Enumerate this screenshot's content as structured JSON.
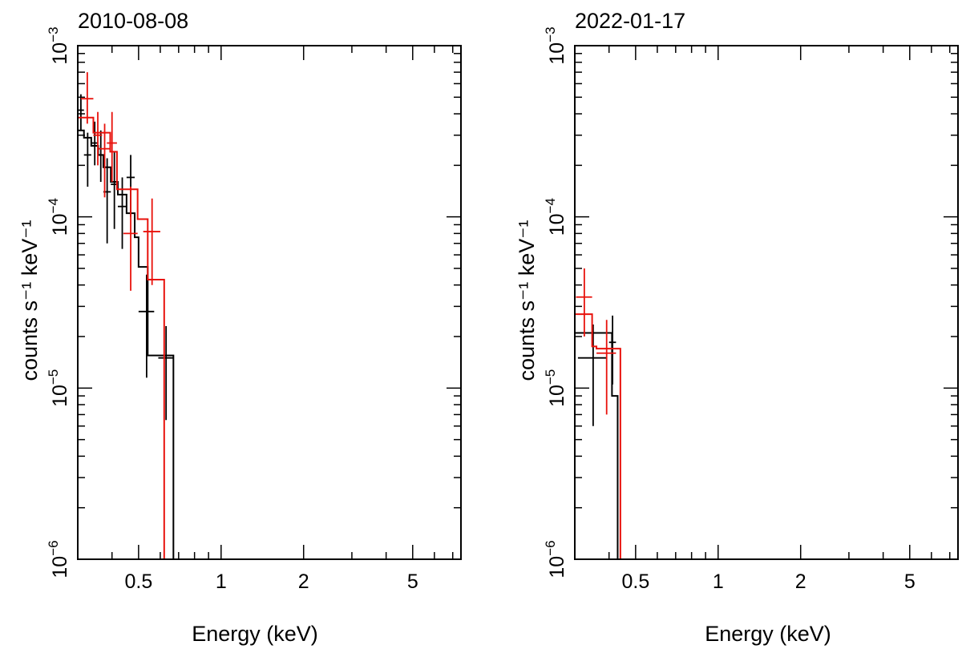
{
  "colors": {
    "black_series": "#000000",
    "red_series": "#e8120c"
  },
  "chart_data": [
    {
      "type": "step-errorbar",
      "title": "2010-08-08",
      "xlabel": "Energy (keV)",
      "ylabel": "counts s⁻¹ keV⁻¹",
      "xscale": "log",
      "yscale": "log",
      "xlim": [
        0.3,
        7.5
      ],
      "ylim": [
        1e-06,
        0.001
      ],
      "xticks": [
        {
          "v": 0.5,
          "label": "0.5"
        },
        {
          "v": 1,
          "label": "1"
        },
        {
          "v": 2,
          "label": "2"
        },
        {
          "v": 5,
          "label": "5"
        }
      ],
      "yticks": [
        {
          "v": 1e-06,
          "base": "10",
          "exp": "−6"
        },
        {
          "v": 1e-05,
          "base": "10",
          "exp": "−5"
        },
        {
          "v": 0.0001,
          "base": "10",
          "exp": "−4"
        },
        {
          "v": 0.001,
          "base": "10",
          "exp": "−3"
        }
      ],
      "series": [
        {
          "name": "black",
          "color": "#000000",
          "points": [
            {
              "x": 0.308,
              "xlo": 0.3,
              "xhi": 0.316,
              "y": 0.00042,
              "ylo": 0.00032,
              "yhi": 0.00052
            },
            {
              "x": 0.326,
              "xlo": 0.316,
              "xhi": 0.336,
              "y": 0.00023,
              "ylo": 0.00015,
              "yhi": 0.00031
            },
            {
              "x": 0.346,
              "xlo": 0.336,
              "xhi": 0.356,
              "y": 0.00027,
              "ylo": 0.0002,
              "yhi": 0.00036
            },
            {
              "x": 0.364,
              "xlo": 0.356,
              "xhi": 0.372,
              "y": 0.00023,
              "ylo": 0.00016,
              "yhi": 0.00032
            },
            {
              "x": 0.384,
              "xlo": 0.372,
              "xhi": 0.396,
              "y": 0.00014,
              "ylo": 7e-05,
              "yhi": 0.00022
            },
            {
              "x": 0.408,
              "xlo": 0.396,
              "xhi": 0.42,
              "y": 0.000155,
              "ylo": 8.5e-05,
              "yhi": 0.00024
            },
            {
              "x": 0.436,
              "xlo": 0.42,
              "xhi": 0.452,
              "y": 0.000115,
              "ylo": 6.5e-05,
              "yhi": 0.00017
            },
            {
              "x": 0.468,
              "xlo": 0.452,
              "xhi": 0.484,
              "y": 0.00017,
              "ylo": 0.0001,
              "yhi": 0.00023
            },
            {
              "x": 0.535,
              "xlo": 0.5,
              "xhi": 0.57,
              "y": 2.8e-05,
              "ylo": 1.15e-05,
              "yhi": 4.6e-05
            },
            {
              "x": 0.63,
              "xlo": 0.59,
              "xhi": 0.67,
              "y": 1.5e-05,
              "ylo": 6.5e-06,
              "yhi": 2.3e-05
            }
          ],
          "model_edges": [
            0.3,
            0.316,
            0.336,
            0.356,
            0.372,
            0.396,
            0.42,
            0.452,
            0.484,
            0.5,
            0.54,
            0.59,
            0.67
          ],
          "model_values": [
            0.00032,
            0.00029,
            0.00026,
            0.00023,
            0.000195,
            0.00016,
            0.000135,
            0.000105,
            7.6e-05,
            5.1e-05,
            1.55e-05,
            1.55e-05
          ],
          "model_drop_x": 0.67
        },
        {
          "name": "red",
          "color": "#e8120c",
          "points": [
            {
              "x": 0.325,
              "xlo": 0.308,
              "xhi": 0.342,
              "y": 0.00049,
              "ylo": 0.00035,
              "yhi": 0.0007
            },
            {
              "x": 0.355,
              "xlo": 0.342,
              "xhi": 0.368,
              "y": 0.0003,
              "ylo": 0.0002,
              "yhi": 0.00041
            },
            {
              "x": 0.376,
              "xlo": 0.358,
              "xhi": 0.394,
              "y": 0.00025,
              "ylo": 0.00013,
              "yhi": 0.00035
            },
            {
              "x": 0.4,
              "xlo": 0.383,
              "xhi": 0.417,
              "y": 0.00027,
              "ylo": 0.00016,
              "yhi": 0.00041
            },
            {
              "x": 0.468,
              "xlo": 0.44,
              "xhi": 0.496,
              "y": 8e-05,
              "ylo": 3.7e-05,
              "yhi": 0.00015
            },
            {
              "x": 0.56,
              "xlo": 0.52,
              "xhi": 0.6,
              "y": 8.2e-05,
              "ylo": 4e-05,
              "yhi": 0.000128
            }
          ],
          "model_edges": [
            0.3,
            0.342,
            0.394,
            0.417,
            0.496,
            0.54,
            0.62
          ],
          "model_values": [
            0.00038,
            0.00031,
            0.00024,
            0.000145,
            9.7e-05,
            4.3e-05
          ],
          "model_drop_x": 0.62
        }
      ]
    },
    {
      "type": "step-errorbar",
      "title": "2022-01-17",
      "xlabel": "Energy (keV)",
      "ylabel": "counts s⁻¹ keV⁻¹",
      "xscale": "log",
      "yscale": "log",
      "xlim": [
        0.3,
        7.5
      ],
      "ylim": [
        1e-06,
        0.001
      ],
      "xticks": [
        {
          "v": 0.5,
          "label": "0.5"
        },
        {
          "v": 1,
          "label": "1"
        },
        {
          "v": 2,
          "label": "2"
        },
        {
          "v": 5,
          "label": "5"
        }
      ],
      "yticks": [
        {
          "v": 1e-06,
          "base": "10",
          "exp": "−6"
        },
        {
          "v": 1e-05,
          "base": "10",
          "exp": "−5"
        },
        {
          "v": 0.0001,
          "base": "10",
          "exp": "−4"
        },
        {
          "v": 0.001,
          "base": "10",
          "exp": "−3"
        }
      ],
      "series": [
        {
          "name": "black",
          "color": "#000000",
          "points": [
            {
              "x": 0.35,
              "xlo": 0.308,
              "xhi": 0.392,
              "y": 1.5e-05,
              "ylo": 6e-06,
              "yhi": 2.35e-05
            },
            {
              "x": 0.412,
              "xlo": 0.4,
              "xhi": 0.424,
              "y": 1.85e-05,
              "ylo": 1.05e-05,
              "yhi": 2.65e-05
            }
          ],
          "model_edges": [
            0.3,
            0.345,
            0.41,
            0.43
          ],
          "model_values": [
            2.1e-05,
            2.1e-05,
            9e-06
          ],
          "model_drop_x": 0.43
        },
        {
          "name": "red",
          "color": "#e8120c",
          "points": [
            {
              "x": 0.325,
              "xlo": 0.303,
              "xhi": 0.347,
              "y": 3.4e-05,
              "ylo": 2e-05,
              "yhi": 5e-05
            },
            {
              "x": 0.392,
              "xlo": 0.36,
              "xhi": 0.424,
              "y": 1.6e-05,
              "ylo": 7e-06,
              "yhi": 2.5e-05
            }
          ],
          "model_edges": [
            0.3,
            0.347,
            0.36,
            0.44
          ],
          "model_values": [
            2.7e-05,
            1.75e-05,
            1.7e-05
          ],
          "model_drop_x": 0.44
        }
      ]
    }
  ]
}
